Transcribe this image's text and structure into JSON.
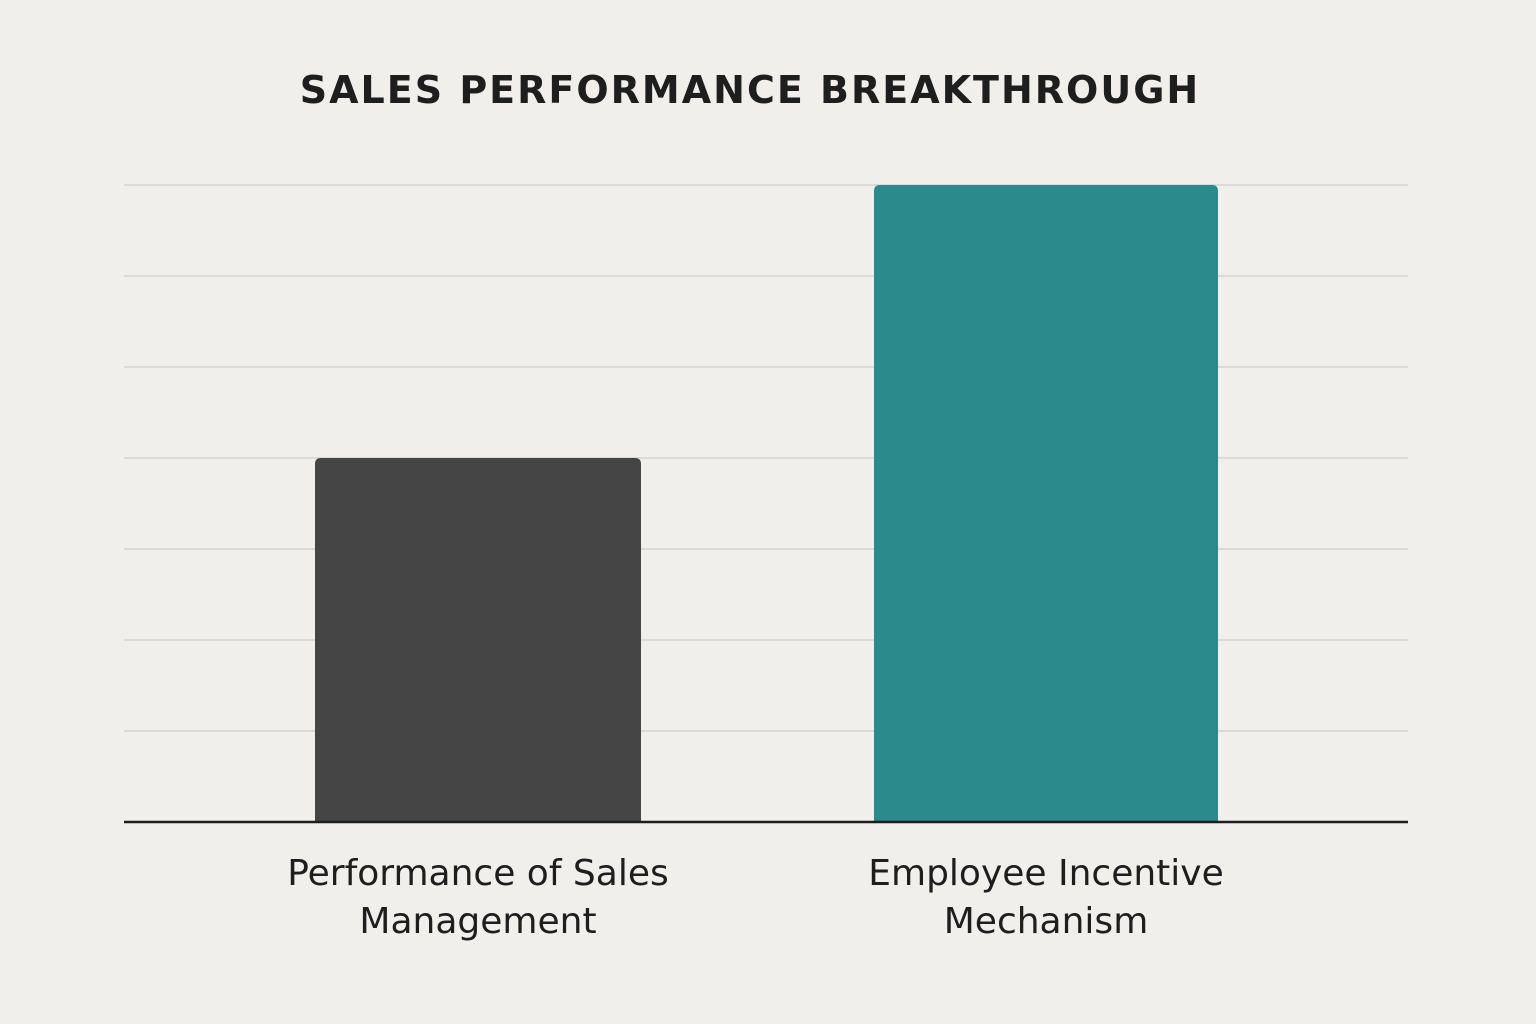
{
  "chart_data": {
    "type": "bar",
    "title": "SALES PERFORMANCE BREAKTHROUGH",
    "categories": [
      "Performance of Sales Management",
      "Employee Incentive Mechanism"
    ],
    "category_lines": [
      [
        "Performance of Sales",
        "Management"
      ],
      [
        "Employee Incentive",
        "Mechanism"
      ]
    ],
    "values": [
      4,
      7
    ],
    "ylim": [
      0,
      7
    ],
    "grid": true,
    "y_tick_labels_shown": false,
    "xlabel": "",
    "ylabel": "",
    "colors": [
      "#454545",
      "#2b8a8c"
    ],
    "gridline_color": "#d6d4d0",
    "axis_color": "#1e1e1e",
    "background": "#f1efeb"
  }
}
